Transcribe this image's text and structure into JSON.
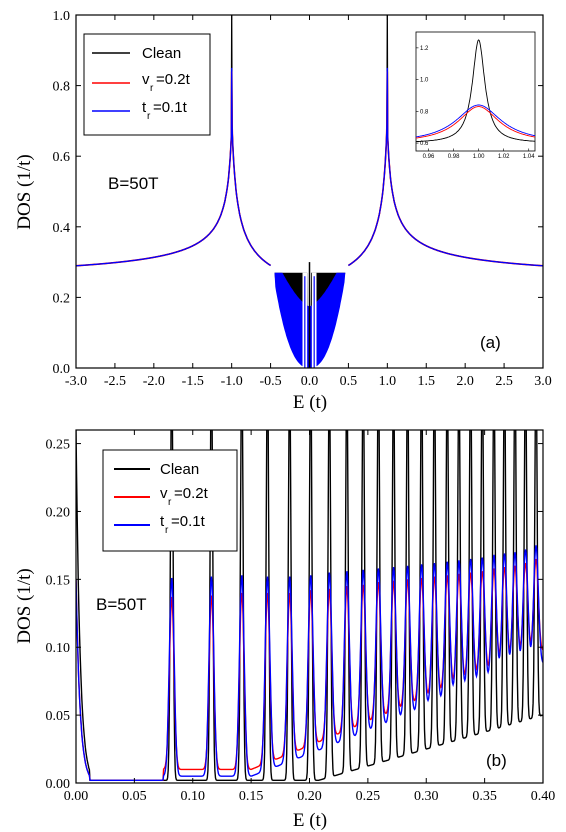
{
  "chart_data": [
    {
      "type": "line",
      "panel_label": "(a)",
      "annotation": "B=50T",
      "xlabel": "E (t)",
      "ylabel": "DOS (1/t)",
      "xlim": [
        -3.0,
        3.0
      ],
      "ylim": [
        0.0,
        1.0
      ],
      "xticks": [
        "-3.0",
        "-2.5",
        "-2.0",
        "-1.5",
        "-1.0",
        "-0.5",
        "0.0",
        "0.5",
        "1.0",
        "1.5",
        "2.0",
        "2.5",
        "3.0"
      ],
      "yticks": [
        "0.0",
        "0.2",
        "0.4",
        "0.6",
        "0.8",
        "1.0"
      ],
      "grid": false,
      "legend_position": "top-left",
      "colors": {
        "clean": "#000000",
        "vr": "#ff0000",
        "tr": "#0000ff"
      },
      "series": [
        {
          "name": "Clean",
          "sub": "",
          "x": [
            -3.0,
            -2.5,
            -2.0,
            -1.5,
            -1.2,
            -1.0,
            -0.8,
            -0.5,
            -0.3,
            -0.1,
            0.0,
            0.1,
            0.3,
            0.5,
            0.8,
            1.0,
            1.2,
            1.5,
            2.0,
            2.5,
            3.0
          ],
          "y": [
            0.26,
            0.29,
            0.33,
            0.41,
            0.53,
            1.0,
            0.53,
            0.27,
            0.27,
            0.26,
            0.3,
            0.26,
            0.27,
            0.27,
            0.53,
            1.0,
            0.53,
            0.41,
            0.33,
            0.29,
            0.26
          ]
        },
        {
          "name": "v",
          "sub": "r",
          "suffix": "=0.2t",
          "x": [
            -3.0,
            -2.5,
            -2.0,
            -1.5,
            -1.2,
            -1.0,
            -0.8,
            -0.5,
            -0.3,
            -0.1,
            0.0,
            0.1,
            0.3,
            0.5,
            0.8,
            1.0,
            1.2,
            1.5,
            2.0,
            2.5,
            3.0
          ],
          "y": [
            0.26,
            0.29,
            0.33,
            0.41,
            0.53,
            0.84,
            0.53,
            0.27,
            0.17,
            0.16,
            0.0,
            0.16,
            0.17,
            0.27,
            0.53,
            0.84,
            0.53,
            0.41,
            0.33,
            0.29,
            0.26
          ]
        },
        {
          "name": "t",
          "sub": "r",
          "suffix": "=0.1t",
          "x": [
            -3.0,
            -2.5,
            -2.0,
            -1.5,
            -1.2,
            -1.0,
            -0.8,
            -0.5,
            -0.3,
            -0.1,
            0.0,
            0.1,
            0.3,
            0.5,
            0.8,
            1.0,
            1.2,
            1.5,
            2.0,
            2.5,
            3.0
          ],
          "y": [
            0.26,
            0.29,
            0.33,
            0.41,
            0.53,
            0.85,
            0.53,
            0.27,
            0.17,
            0.16,
            0.0,
            0.16,
            0.17,
            0.27,
            0.53,
            0.85,
            0.53,
            0.41,
            0.33,
            0.29,
            0.26
          ]
        }
      ],
      "inset": {
        "xlim": [
          0.95,
          1.045
        ],
        "ylim": [
          0.55,
          1.3
        ],
        "xticks": [
          "0.96",
          "0.98",
          "1.00",
          "1.02",
          "1.04"
        ],
        "yticks": [
          "0.6",
          "0.8",
          "1.0",
          "1.2"
        ],
        "series_peaks": {
          "Clean": 1.25,
          "vr": 0.83,
          "tr": 0.84
        }
      }
    },
    {
      "type": "line",
      "panel_label": "(b)",
      "annotation": "B=50T",
      "xlabel": "E (t)",
      "ylabel": "DOS (1/t)",
      "xlim": [
        0.0,
        0.4
      ],
      "ylim": [
        0.0,
        0.26
      ],
      "xticks": [
        "0.00",
        "0.05",
        "0.10",
        "0.15",
        "0.20",
        "0.25",
        "0.30",
        "0.35",
        "0.40"
      ],
      "yticks": [
        "0.00",
        "0.05",
        "0.10",
        "0.15",
        "0.20",
        "0.25"
      ],
      "grid": false,
      "legend_position": "top-left",
      "colors": {
        "clean": "#000000",
        "vr": "#ff0000",
        "tr": "#0000ff"
      },
      "landau_level_energies": [
        0.082,
        0.116,
        0.142,
        0.164,
        0.183,
        0.201,
        0.217,
        0.232,
        0.246,
        0.259,
        0.272,
        0.284,
        0.296,
        0.307,
        0.318,
        0.328,
        0.338,
        0.348,
        0.358,
        0.367,
        0.376,
        0.385,
        0.394
      ],
      "series": [
        {
          "name": "Clean",
          "sub": "",
          "peak_height": 0.26,
          "gap_zone_y": 0.002
        },
        {
          "name": "v",
          "sub": "r",
          "suffix": "=0.2t",
          "peak_heights": [
            0.137,
            0.138,
            0.14,
            0.14,
            0.14,
            0.142,
            0.143,
            0.145,
            0.146,
            0.148,
            0.149,
            0.15,
            0.151,
            0.152,
            0.153,
            0.154,
            0.155,
            0.156,
            0.158,
            0.159,
            0.16,
            0.162,
            0.165
          ]
        },
        {
          "name": "t",
          "sub": "r",
          "suffix": "=0.1t",
          "peak_heights": [
            0.151,
            0.152,
            0.153,
            0.152,
            0.152,
            0.153,
            0.155,
            0.156,
            0.157,
            0.158,
            0.159,
            0.16,
            0.161,
            0.162,
            0.163,
            0.164,
            0.165,
            0.166,
            0.168,
            0.169,
            0.17,
            0.172,
            0.175
          ]
        }
      ]
    }
  ]
}
